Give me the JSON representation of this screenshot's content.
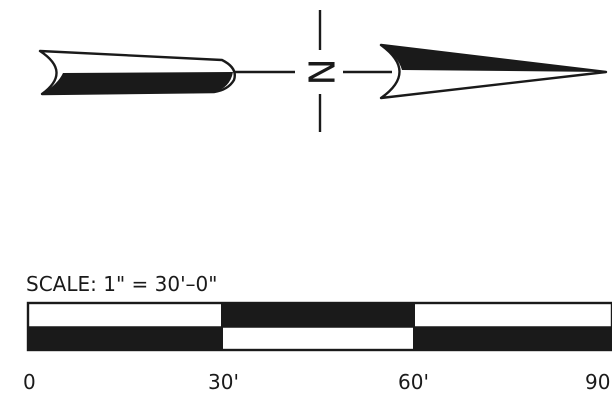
{
  "north_arrow": {
    "label": "N"
  },
  "scale_bar": {
    "title": "SCALE:  1\"  =  30'–0\"",
    "ticks": [
      "0",
      "30'",
      "60'",
      "90"
    ]
  }
}
